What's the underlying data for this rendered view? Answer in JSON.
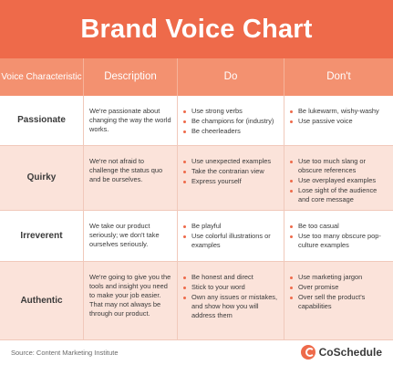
{
  "title": "Brand Voice Chart",
  "headers": {
    "characteristic": "Voice Characteristic",
    "description": "Description",
    "do": "Do",
    "dont": "Don't"
  },
  "rows": [
    {
      "characteristic": "Passionate",
      "description": "We're passionate about changing the way the world works.",
      "do": [
        "Use strong verbs",
        "Be champions for (industry)",
        "Be cheerleaders"
      ],
      "dont": [
        "Be lukewarm, wishy-washy",
        "Use passive voice"
      ]
    },
    {
      "characteristic": "Quirky",
      "description": "We're not afraid to challenge the status quo and be ourselves.",
      "do": [
        "Use unexpected examples",
        "Take the contrarian view",
        "Express yourself"
      ],
      "dont": [
        "Use too much slang or obscure references",
        "Use overplayed examples",
        "Lose sight of the audience and core message"
      ]
    },
    {
      "characteristic": "Irreverent",
      "description": "We take our product seriously; we don't take ourselves seriously.",
      "do": [
        "Be playful",
        "Use colorful illustrations or examples"
      ],
      "dont": [
        "Be too casual",
        "Use too many obscure pop-culture examples"
      ]
    },
    {
      "characteristic": "Authentic",
      "description": "We're going to give you the tools and insight you need to make your job easier. That may not always be through our product.",
      "do": [
        "Be honest and direct",
        "Stick to your word",
        "Own any issues or mistakes, and show how you will address them"
      ],
      "dont": [
        "Use marketing jargon",
        "Over promise",
        "Over sell the product's capabilities"
      ]
    }
  ],
  "footer": {
    "source": "Source: Content Marketing Institute",
    "logo_text": "CoSchedule"
  },
  "colors": {
    "accent": "#ee6a4a",
    "header_row": "#f39170",
    "row_tint": "#fbe3da"
  }
}
